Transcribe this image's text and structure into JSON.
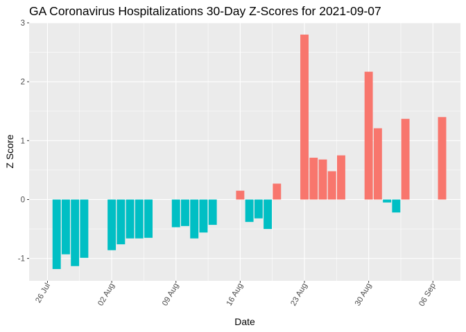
{
  "chart_data": {
    "type": "bar",
    "title": "GA Coronavirus Hospitalizations 30-Day Z-Scores for 2021-09-07",
    "xlabel": "Date",
    "ylabel": "Z Score",
    "ylim": [
      -1.38,
      3.0
    ],
    "y_ticks": [
      -1,
      0,
      1,
      2,
      3
    ],
    "x_ticks": [
      {
        "label": "26 Jul",
        "date": "2021-07-26"
      },
      {
        "label": "02 Aug",
        "date": "2021-08-02"
      },
      {
        "label": "09 Aug",
        "date": "2021-08-09"
      },
      {
        "label": "16 Aug",
        "date": "2021-08-16"
      },
      {
        "label": "23 Aug",
        "date": "2021-08-23"
      },
      {
        "label": "30 Aug",
        "date": "2021-08-30"
      },
      {
        "label": "06 Sep",
        "date": "2021-09-06"
      }
    ],
    "x_range": [
      "2021-07-24",
      "2021-09-09"
    ],
    "grid": true,
    "legend": "none",
    "colors": {
      "positive": "#F8766D",
      "negative": "#00BFC4",
      "panel": "#EBEBEB",
      "grid": "#FFFFFF"
    },
    "series": [
      {
        "x": [
          "2021-07-27",
          "2021-07-28",
          "2021-07-29",
          "2021-07-30",
          "2021-08-02",
          "2021-08-03",
          "2021-08-04",
          "2021-08-05",
          "2021-08-06",
          "2021-08-09",
          "2021-08-10",
          "2021-08-11",
          "2021-08-12",
          "2021-08-13",
          "2021-08-16",
          "2021-08-17",
          "2021-08-18",
          "2021-08-19",
          "2021-08-20",
          "2021-08-23",
          "2021-08-24",
          "2021-08-25",
          "2021-08-26",
          "2021-08-27",
          "2021-08-30",
          "2021-08-31",
          "2021-09-01",
          "2021-09-02",
          "2021-09-03",
          "2021-09-07"
        ],
        "values": [
          -1.18,
          -0.93,
          -1.13,
          -0.99,
          -0.86,
          -0.76,
          -0.66,
          -0.66,
          -0.65,
          -0.47,
          -0.45,
          -0.66,
          -0.56,
          -0.43,
          0.15,
          -0.38,
          -0.32,
          -0.5,
          0.27,
          2.8,
          0.71,
          0.68,
          0.48,
          0.75,
          2.17,
          1.21,
          -0.05,
          -0.22,
          1.37,
          1.4
        ]
      }
    ]
  }
}
